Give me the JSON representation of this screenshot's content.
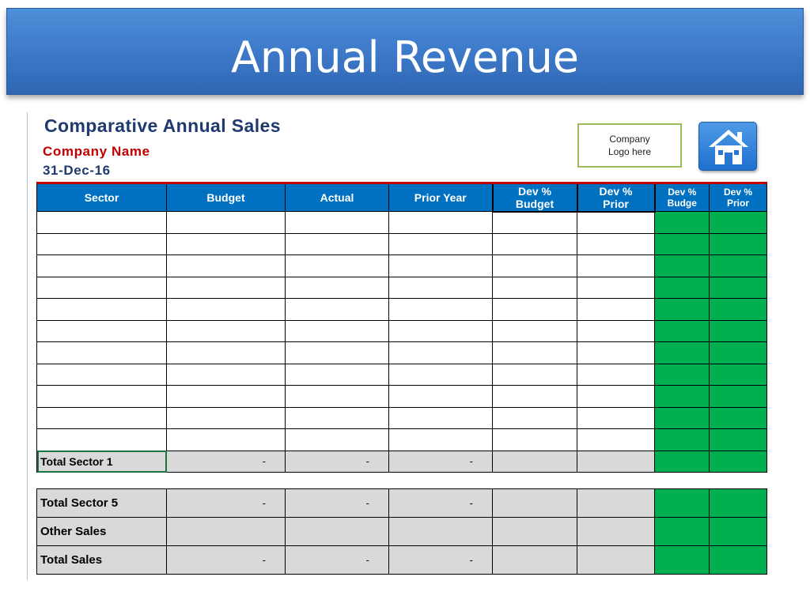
{
  "slide": {
    "title": "Annual Revenue"
  },
  "report": {
    "heading": "Comparative Annual Sales",
    "company_name": "Company Name",
    "date": "31-Dec-16",
    "logo_placeholder": "Company\nLogo here"
  },
  "home_button": {
    "icon": "home-icon"
  },
  "table": {
    "headers": [
      "Sector",
      "Budget",
      "Actual",
      "Prior Year",
      "Dev %\nBudget",
      "Dev %\nPrior",
      "Dev %\nBudge",
      "Dev %\nPrior"
    ],
    "blank_row_count": 11,
    "total_sector_1": {
      "label": "Total Sector 1",
      "budget": "-",
      "actual": "-",
      "prior_year": "-"
    }
  },
  "summary": {
    "total_sector_5": {
      "label": "Total Sector 5",
      "budget": "-",
      "actual": "-",
      "prior_year": "-"
    },
    "other_sales": {
      "label": "Other Sales"
    },
    "total_sales": {
      "label": "Total Sales",
      "budget": "-",
      "actual": "-",
      "prior_year": "-"
    }
  },
  "colors": {
    "header_blue": "#0070c0",
    "highlight_green": "#00b050",
    "heading_navy": "#1f3a6e",
    "company_red": "#c00000",
    "total_gray": "#d9d9d9"
  }
}
